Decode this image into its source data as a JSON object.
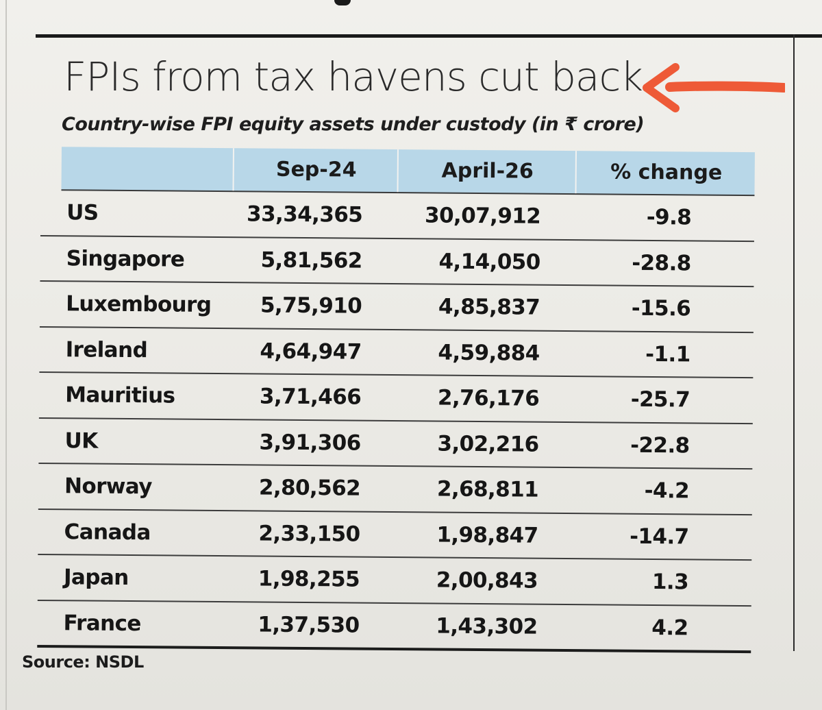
{
  "title": "FPIs from tax havens cut back",
  "subtitle": "Country-wise FPI equity assets under custody (in ₹ crore)",
  "colors": {
    "header_bg": "#b8d7e8",
    "arrow": "#ee5a37",
    "ink": "#161616"
  },
  "table": {
    "headers": [
      "",
      "Sep-24",
      "April-26",
      "% change"
    ],
    "rows": [
      {
        "country": "US",
        "sep24": "33,34,365",
        "apr26": "30,07,912",
        "change": "-9.8"
      },
      {
        "country": "Singapore",
        "sep24": "5,81,562",
        "apr26": "4,14,050",
        "change": "-28.8"
      },
      {
        "country": "Luxembourg",
        "sep24": "5,75,910",
        "apr26": "4,85,837",
        "change": "-15.6"
      },
      {
        "country": "Ireland",
        "sep24": "4,64,947",
        "apr26": "4,59,884",
        "change": "-1.1"
      },
      {
        "country": "Mauritius",
        "sep24": "3,71,466",
        "apr26": "2,76,176",
        "change": "-25.7"
      },
      {
        "country": "UK",
        "sep24": "3,91,306",
        "apr26": "3,02,216",
        "change": "-22.8"
      },
      {
        "country": "Norway",
        "sep24": "2,80,562",
        "apr26": "2,68,811",
        "change": "-4.2"
      },
      {
        "country": "Canada",
        "sep24": "2,33,150",
        "apr26": "1,98,847",
        "change": "-14.7"
      },
      {
        "country": "Japan",
        "sep24": "1,98,255",
        "apr26": "2,00,843",
        "change": "1.3"
      },
      {
        "country": "France",
        "sep24": "1,37,530",
        "apr26": "1,43,302",
        "change": "4.2"
      }
    ]
  },
  "source": "Source: NSDL",
  "annotation_icon": "red-arrow-left-icon"
}
